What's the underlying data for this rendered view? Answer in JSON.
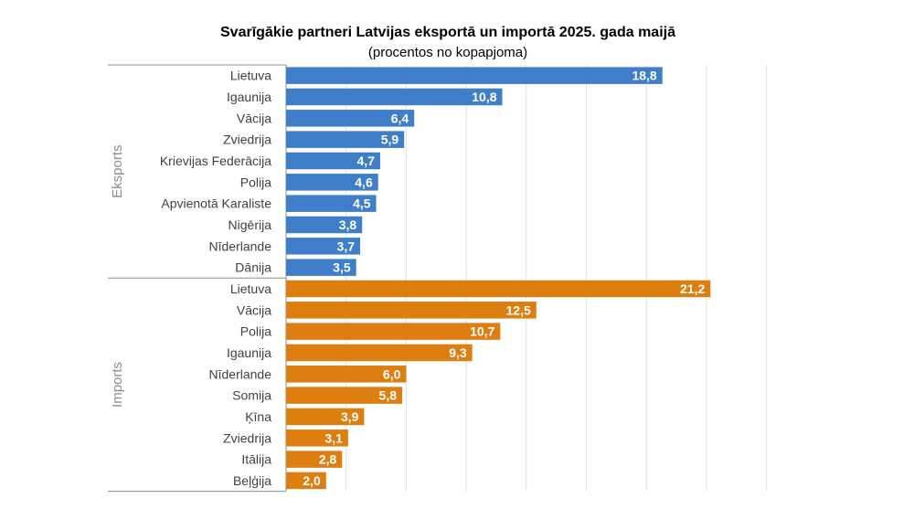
{
  "chart_data": {
    "type": "bar",
    "orientation": "horizontal",
    "title": "Svarīgākie partneri Latvijas eksportā un importā 2025. gada maijā",
    "subtitle": "(procentos no kopapjoma)",
    "xlim": [
      0,
      22
    ],
    "grid": true,
    "groups": [
      {
        "name": "Eksports",
        "color": "#3f7ec8",
        "categories": [
          "Lietuva",
          "Igaunija",
          "Vācija",
          "Zviedrija",
          "Krievijas Federācija",
          "Polija",
          "Apvienotā Karaliste",
          "Nigērija",
          "Nīderlande",
          "Dānija"
        ],
        "values": [
          18.8,
          10.8,
          6.4,
          5.9,
          4.7,
          4.6,
          4.5,
          3.8,
          3.7,
          3.5
        ],
        "labels": [
          "18,8",
          "10,8",
          "6,4",
          "5,9",
          "4,7",
          "4,6",
          "4,5",
          "3,8",
          "3,7",
          "3,5"
        ]
      },
      {
        "name": "Imports",
        "color": "#dc7f10",
        "categories": [
          "Lietuva",
          "Vācija",
          "Polija",
          "Igaunija",
          "Nīderlande",
          "Somija",
          "Ķīna",
          "Zviedrija",
          "Itālija",
          "Beļģija"
        ],
        "values": [
          21.2,
          12.5,
          10.7,
          9.3,
          6.0,
          5.8,
          3.9,
          3.1,
          2.8,
          2.0
        ],
        "labels": [
          "21,2",
          "12,5",
          "10,7",
          "9,3",
          "6,0",
          "5,8",
          "3,9",
          "3,1",
          "2,8",
          "2,0"
        ]
      }
    ]
  }
}
